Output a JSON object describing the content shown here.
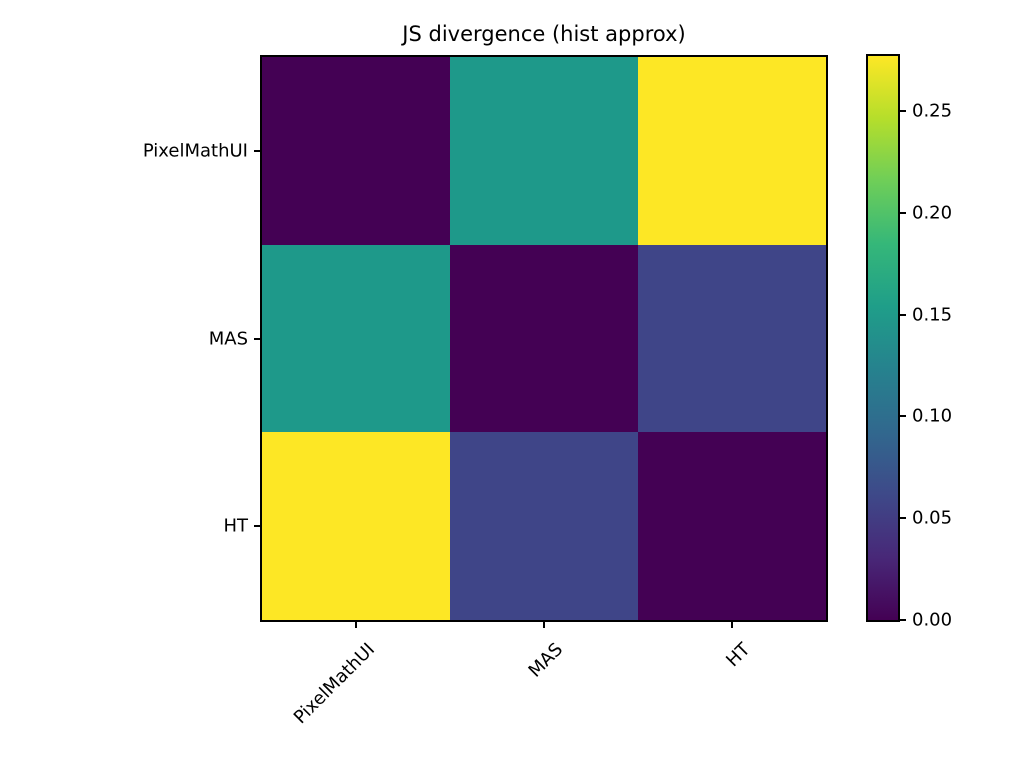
{
  "chart_data": {
    "type": "heatmap",
    "title": "JS divergence (hist approx)",
    "categories": [
      "PixelMathUI",
      "MAS",
      "HT"
    ],
    "x_tick_labels": [
      "PixelMathUI",
      "MAS",
      "HT"
    ],
    "y_tick_labels": [
      "PixelMathUI",
      "MAS",
      "HT"
    ],
    "matrix": [
      [
        0.0,
        0.15,
        0.277
      ],
      [
        0.15,
        0.0,
        0.055
      ],
      [
        0.277,
        0.055,
        0.0
      ]
    ],
    "cell_colors": [
      [
        "#440154",
        "#1e998a",
        "#fde725"
      ],
      [
        "#1e998a",
        "#440154",
        "#3f4588"
      ],
      [
        "#fde725",
        "#3f4588",
        "#440154"
      ]
    ],
    "vmin": 0.0,
    "vmax": 0.277,
    "x_tick_rotation_deg": 45,
    "grid": false,
    "colorbar": {
      "position": "right",
      "ticks": [
        0.0,
        0.05,
        0.1,
        0.15,
        0.2,
        0.25
      ],
      "tick_labels": [
        "0.00",
        "0.05",
        "0.10",
        "0.15",
        "0.20",
        "0.25"
      ],
      "gradient_stops": [
        "#440154",
        "#482878",
        "#3e4989",
        "#31688e",
        "#26828e",
        "#1f9e89",
        "#35b779",
        "#6ece58",
        "#b5de2b",
        "#fde725"
      ]
    },
    "colors": {
      "background": "#ffffff",
      "axis": "#000000",
      "text": "#000000",
      "min_cell": "#440154",
      "max_cell": "#fde725"
    }
  }
}
